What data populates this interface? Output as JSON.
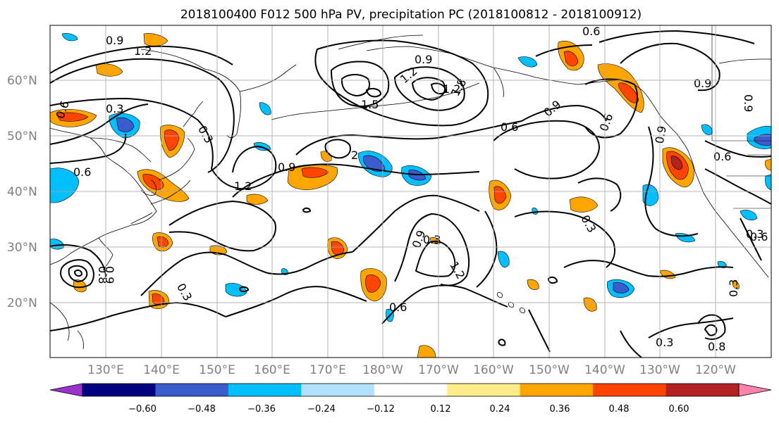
{
  "title": "2018100400 F012 500 hPa PV, precipitation PC (2018100812 - 2018100912)",
  "latitude_labels": [
    "60°N",
    "50°N",
    "40°N",
    "30°N",
    "20°N"
  ],
  "longitude_labels": [
    "130°E",
    "140°E",
    "150°E",
    "160°E",
    "170°E",
    "180°W",
    "170°W",
    "160°W",
    "150°W",
    "140°W",
    "130°W",
    "120°W"
  ],
  "colorbar": {
    "tick_labels": [
      "−0.60",
      "−0.48",
      "−0.36",
      "−0.24",
      "−0.12",
      "0.12",
      "0.24",
      "0.36",
      "0.48",
      "0.60"
    ],
    "colors": [
      "#9a32cd",
      "#000080",
      "#3a5ccc",
      "#00bfff",
      "#b0e2ff",
      "#ffffff",
      "#ffec8b",
      "#ffa500",
      "#ff4500",
      "#b22222",
      "#ff82ab"
    ]
  },
  "contour_labels": [
    "0.9",
    "1.2",
    "0.3",
    "0.6",
    "0.6",
    "0.3",
    "0.9",
    "1.2",
    "0.9",
    "1.2",
    "1.5",
    "1.2",
    "1.8",
    "2",
    "0.9",
    "0.6",
    "0.9",
    "0.6",
    "0.6",
    "0.9",
    "0.9",
    "0.3",
    "0.3",
    "0.9",
    "1.2",
    "0.6",
    "0.3",
    "0.3",
    "0.6",
    "0.3",
    "0.6",
    "0.8",
    "0.8",
    "0.9",
    "0.3"
  ]
}
